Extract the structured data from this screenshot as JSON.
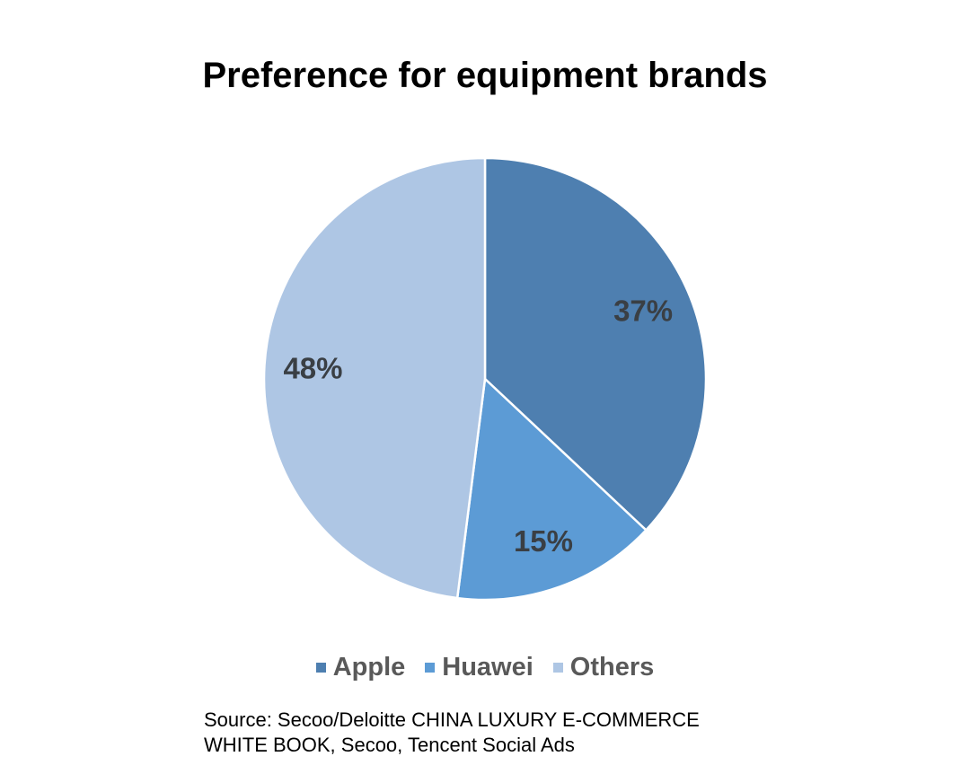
{
  "chart_data": {
    "type": "pie",
    "title": "Preference for equipment brands",
    "slices": [
      {
        "name": "Apple",
        "value": 37,
        "label": "37%",
        "color": "#4e7fb0"
      },
      {
        "name": "Huawei",
        "value": 15,
        "label": "15%",
        "color": "#5c9bd5"
      },
      {
        "name": "Others",
        "value": 48,
        "label": "48%",
        "color": "#aec6e4"
      }
    ],
    "legend_position": "bottom",
    "start_angle": "12 o'clock",
    "direction": "clockwise"
  },
  "source": {
    "line1": "Source: Secoo/Deloitte CHINA LUXURY E-COMMERCE",
    "line2": "WHITE BOOK, Secoo, Tencent Social Ads"
  }
}
